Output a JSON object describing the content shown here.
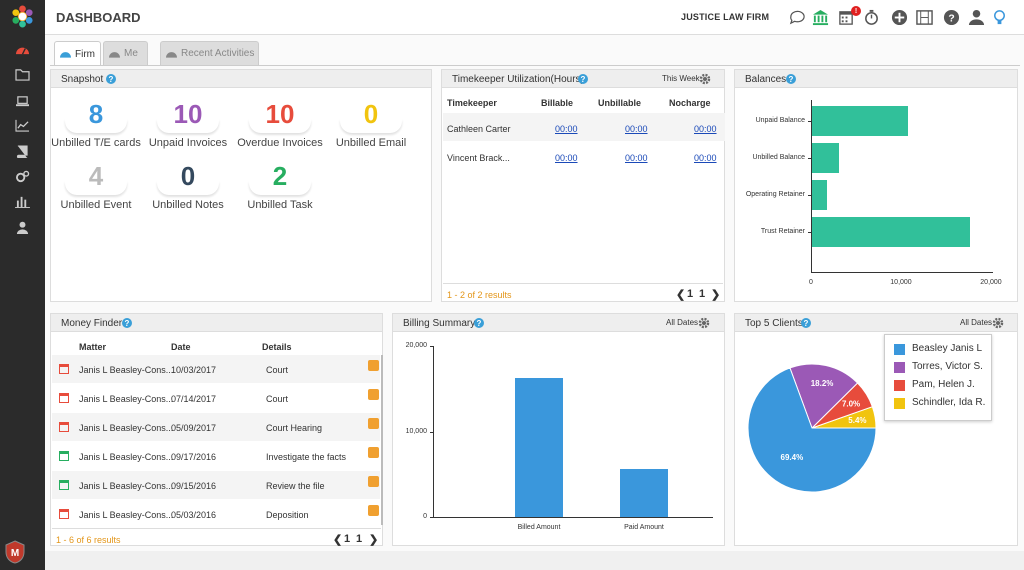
{
  "header": {
    "title": "DASHBOARD",
    "firm_name": "JUSTICE LAW FIRM",
    "calendar_badge": "!",
    "icons": [
      "chat-icon",
      "bank-icon",
      "calendar-icon",
      "stopwatch-icon",
      "plus-circle-icon",
      "film-icon",
      "help-circle-icon",
      "user-icon",
      "lightbulb-icon"
    ]
  },
  "sidebar": {
    "items": [
      "dashboard-icon",
      "folder-icon",
      "laptop-icon",
      "chart-line-icon",
      "book-icon",
      "gears-icon",
      "bar-chart-icon",
      "user-icon"
    ]
  },
  "tabs": [
    {
      "label": "Firm",
      "active": true
    },
    {
      "label": "Me",
      "active": false
    },
    {
      "label": "Recent Activities",
      "active": false
    }
  ],
  "snapshot": {
    "title": "Snapshot",
    "items": [
      {
        "value": "8",
        "label": "Unbilled T/E cards",
        "color": "#3a97dc"
      },
      {
        "value": "10",
        "label": "Unpaid Invoices",
        "color": "#9b59b6"
      },
      {
        "value": "10",
        "label": "Overdue Invoices",
        "color": "#e74c3c"
      },
      {
        "value": "0",
        "label": "Unbilled Email",
        "color": "#f1c40f"
      },
      {
        "value": "4",
        "label": "Unbilled Event",
        "color": "#bbbbbb"
      },
      {
        "value": "0",
        "label": "Unbilled Notes",
        "color": "#34495e"
      },
      {
        "value": "2",
        "label": "Unbilled Task",
        "color": "#27ae60"
      }
    ]
  },
  "timekeeper": {
    "title": "Timekeeper Utilization(Hours)",
    "period": "This Week",
    "columns": [
      "Timekeeper",
      "Billable",
      "Unbillable",
      "Nocharge"
    ],
    "rows": [
      [
        "Cathleen Carter",
        "00:00",
        "00:00",
        "00:00"
      ],
      [
        "Vincent Brack...",
        "00:00",
        "00:00",
        "00:00"
      ]
    ],
    "results": "1 - 2 of 2 results",
    "pager_prev": "❮",
    "page": "1",
    "pages": "1",
    "pager_next": "❯"
  },
  "balances": {
    "title": "Balances",
    "chart_data": {
      "type": "bar",
      "orientation": "horizontal",
      "categories": [
        "Unpaid Balance",
        "Unbilled Balance",
        "Operating Retainer",
        "Trust Retainer"
      ],
      "values": [
        10700,
        3000,
        1700,
        17500
      ],
      "xlim": [
        0,
        20000
      ],
      "xticks": [
        "0",
        "10,000",
        "20,000"
      ]
    }
  },
  "money_finder": {
    "title": "Money Finder",
    "columns": [
      "Matter",
      "Date",
      "Details"
    ],
    "rows": [
      {
        "icon": "calendar-red-icon",
        "matter": "Janis L Beasley-Cons...",
        "date": "10/03/2017",
        "details": "Court"
      },
      {
        "icon": "calendar-red-icon",
        "matter": "Janis L Beasley-Cons...",
        "date": "07/14/2017",
        "details": "Court"
      },
      {
        "icon": "calendar-red-icon",
        "matter": "Janis L Beasley-Cons...",
        "date": "05/09/2017",
        "details": "Court Hearing"
      },
      {
        "icon": "card-green-icon",
        "matter": "Janis L Beasley-Cons...",
        "date": "09/17/2016",
        "details": "Investigate the facts"
      },
      {
        "icon": "card-green-icon",
        "matter": "Janis L Beasley-Cons...",
        "date": "09/15/2016",
        "details": "Review the file"
      },
      {
        "icon": "calendar-red-icon",
        "matter": "Janis L Beasley-Cons...",
        "date": "05/03/2016",
        "details": "Deposition"
      }
    ],
    "results": "1 - 6 of 6 results",
    "pager_prev": "❮",
    "page": "1",
    "pages": "1",
    "pager_next": "❯"
  },
  "billing": {
    "title": "Billing Summary",
    "period": "All Dates",
    "chart_data": {
      "type": "bar",
      "categories": [
        "Billed Amount",
        "Paid Amount"
      ],
      "values": [
        16200,
        5600
      ],
      "ylim": [
        0,
        20000
      ],
      "yticks": [
        "20,000",
        "10,000",
        "0"
      ]
    }
  },
  "clients": {
    "title": "Top 5 Clients",
    "period": "All Dates",
    "chart_data": {
      "type": "pie",
      "slices": [
        {
          "name": "Beasley Janis L",
          "value": 69.4,
          "label": "69.4%",
          "color": "#3a97dc"
        },
        {
          "name": "Torres, Victor S.",
          "value": 18.2,
          "label": "18.2%",
          "color": "#9b59b6"
        },
        {
          "name": "Pam, Helen J.",
          "value": 7.0,
          "label": "7.0%",
          "color": "#e74c3c"
        },
        {
          "name": "Schindler, Ida R.",
          "value": 5.4,
          "label": "5.4%",
          "color": "#f1c40f"
        }
      ]
    }
  }
}
